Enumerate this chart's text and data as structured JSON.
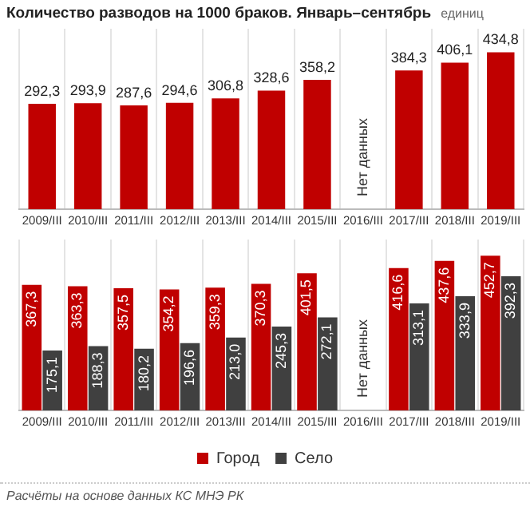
{
  "chart_data": [
    {
      "type": "bar",
      "title": "Количество разводов на 1000 браков. Январь–сентябрь",
      "subtitle": "единиц",
      "categories": [
        "2009/III",
        "2010/III",
        "2011/III",
        "2012/III",
        "2013/III",
        "2014/III",
        "2015/III",
        "2016/III",
        "2017/III",
        "2018/III",
        "2019/III"
      ],
      "series": [
        {
          "color": "#c00000",
          "values": [
            292.3,
            293.9,
            287.6,
            294.6,
            306.8,
            328.6,
            358.2,
            null,
            384.3,
            406.1,
            434.8
          ],
          "value_labels": [
            "292,3",
            "293,9",
            "287,6",
            "294,6",
            "306,8",
            "328,6",
            "358,2",
            null,
            "384,3",
            "406,1",
            "434,8"
          ]
        }
      ],
      "ylim": [
        0,
        500
      ],
      "grid": "x",
      "tick_labels": "x",
      "legend": false,
      "annotations": [
        "Нет данных"
      ]
    },
    {
      "type": "bar",
      "categories": [
        "2009/III",
        "2010/III",
        "2011/III",
        "2012/III",
        "2013/III",
        "2014/III",
        "2015/III",
        "2016/III",
        "2017/III",
        "2018/III",
        "2019/III"
      ],
      "series": [
        {
          "name": "Город",
          "color": "#c00000",
          "values": [
            367.3,
            363.3,
            357.5,
            354.2,
            359.3,
            370.3,
            401.5,
            null,
            416.6,
            437.6,
            452.7
          ],
          "value_labels": [
            "367,3",
            "363,3",
            "357,5",
            "354,2",
            "359,3",
            "370,3",
            "401,5",
            null,
            "416,6",
            "437,6",
            "452,7"
          ]
        },
        {
          "name": "Село",
          "color": "#404040",
          "values": [
            175.1,
            188.3,
            180.2,
            196.6,
            213.0,
            245.3,
            272.1,
            null,
            313.1,
            333.9,
            392.3
          ],
          "value_labels": [
            "175,1",
            "188,3",
            "180,2",
            "196,6",
            "213,0",
            "245,3",
            "272,1",
            null,
            "313,1",
            "333,9",
            "392,3"
          ]
        }
      ],
      "ylim": [
        0,
        500
      ],
      "grid": "x",
      "tick_labels": "x",
      "legend": "bottom",
      "annotations": [
        "Нет данных",
        "Расчёты на основе данных КС МНЭ РК"
      ]
    }
  ]
}
